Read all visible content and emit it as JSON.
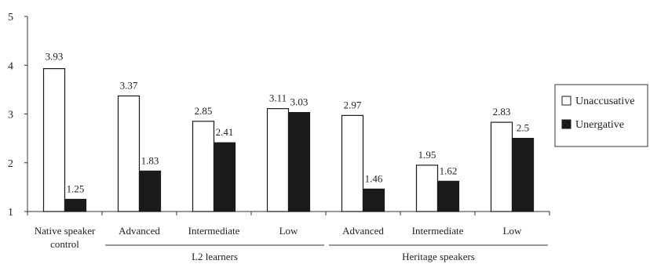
{
  "chart_data": {
    "type": "bar",
    "categories": [
      [
        "Native speaker",
        "control"
      ],
      [
        "Advanced"
      ],
      [
        "Intermediate"
      ],
      [
        "Low"
      ],
      [
        "Advanced"
      ],
      [
        "Intermediate"
      ],
      [
        "Low"
      ]
    ],
    "groups": [
      {
        "label": "L2 learners",
        "categories": [
          1,
          2,
          3
        ]
      },
      {
        "label": "Heritage speakers",
        "categories": [
          4,
          5,
          6
        ]
      }
    ],
    "series": [
      {
        "name": "Unaccusative",
        "values": [
          3.93,
          3.37,
          2.85,
          3.11,
          2.97,
          1.95,
          2.83
        ],
        "labels": [
          "3.93",
          "3.37",
          "2.85",
          "3.11",
          "2.97",
          "1.95",
          "2.83"
        ],
        "color": "#ffffff"
      },
      {
        "name": "Unergative",
        "values": [
          1.25,
          1.83,
          2.41,
          3.03,
          1.46,
          1.62,
          2.5
        ],
        "labels": [
          "1.25",
          "1.83",
          "2.41",
          "3.03",
          "1.46",
          "1.62",
          "2.5"
        ],
        "color": "#1a1a1a"
      }
    ],
    "ylim": [
      1,
      5
    ],
    "yticks": [
      "1",
      "2",
      "3",
      "4",
      "5"
    ],
    "grid": false,
    "legend_position": "right"
  }
}
